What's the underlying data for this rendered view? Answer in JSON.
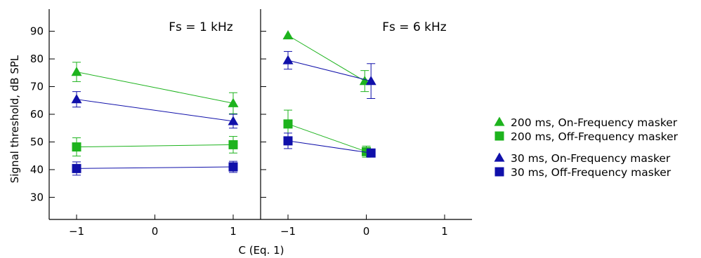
{
  "chart_data": {
    "type": "scatter",
    "xlabel": "C (Eq. 1)",
    "ylabel": "Signal threshold, dB SPL",
    "ylim": [
      22,
      98
    ],
    "yticks": [
      30,
      40,
      50,
      60,
      70,
      80,
      90
    ],
    "xticks": [
      -1,
      0,
      1
    ],
    "xtick_labels": [
      "−1",
      "0",
      "1"
    ],
    "xlim": [
      -1.35,
      1.35
    ],
    "grid": false,
    "legend_position": "right",
    "colors": {
      "green": "#1db31d",
      "blue": "#1010aa"
    },
    "panels": [
      {
        "title": "Fs = 1 kHz",
        "series": [
          {
            "name": "200 ms, On-Frequency masker",
            "marker": "triangle",
            "color": "#1db31d",
            "x": [
              -1,
              1
            ],
            "y": [
              75.3,
              64.0
            ],
            "err": [
              3.5,
              3.8
            ]
          },
          {
            "name": "200 ms, Off-Frequency masker",
            "marker": "square",
            "color": "#1db31d",
            "x": [
              -1,
              1
            ],
            "y": [
              48.2,
              49.0
            ],
            "err": [
              3.3,
              3.0
            ]
          },
          {
            "name": "30 ms, On-Frequency masker",
            "marker": "triangle",
            "color": "#1010aa",
            "x": [
              -1,
              1
            ],
            "y": [
              65.4,
              57.5
            ],
            "err": [
              2.8,
              2.5
            ]
          },
          {
            "name": "30 ms, Off-Frequency masker",
            "marker": "square",
            "color": "#1010aa",
            "x": [
              -1,
              1
            ],
            "y": [
              40.4,
              41.0
            ],
            "err": [
              2.4,
              2.0
            ]
          }
        ]
      },
      {
        "title": "Fs = 6 kHz",
        "series": [
          {
            "name": "200 ms, On-Frequency masker",
            "marker": "triangle",
            "color": "#1db31d",
            "x": [
              -1,
              -0.02
            ],
            "y": [
              88.5,
              72.0
            ],
            "err": [
              0,
              3.8
            ]
          },
          {
            "name": "200 ms, Off-Frequency masker",
            "marker": "square",
            "color": "#1db31d",
            "x": [
              -1,
              0.0
            ],
            "y": [
              56.5,
              46.5
            ],
            "err": [
              5.0,
              2.0
            ]
          },
          {
            "name": "30 ms, On-Frequency masker",
            "marker": "triangle",
            "color": "#1010aa",
            "x": [
              -1,
              0.06
            ],
            "y": [
              79.5,
              72.0
            ],
            "err": [
              3.2,
              6.3
            ]
          },
          {
            "name": "30 ms, Off-Frequency masker",
            "marker": "square",
            "color": "#1010aa",
            "x": [
              -1,
              0.06
            ],
            "y": [
              50.4,
              46.0
            ],
            "err": [
              2.8,
              1.2
            ]
          }
        ]
      }
    ],
    "legend": [
      {
        "label": "200 ms, On-Frequency masker",
        "marker": "triangle",
        "color": "#1db31d"
      },
      {
        "label": "200 ms, Off-Frequency masker",
        "marker": "square",
        "color": "#1db31d"
      },
      {
        "label": "30 ms, On-Frequency masker",
        "marker": "triangle",
        "color": "#1010aa"
      },
      {
        "label": "30 ms, Off-Frequency masker",
        "marker": "square",
        "color": "#1010aa"
      }
    ]
  }
}
